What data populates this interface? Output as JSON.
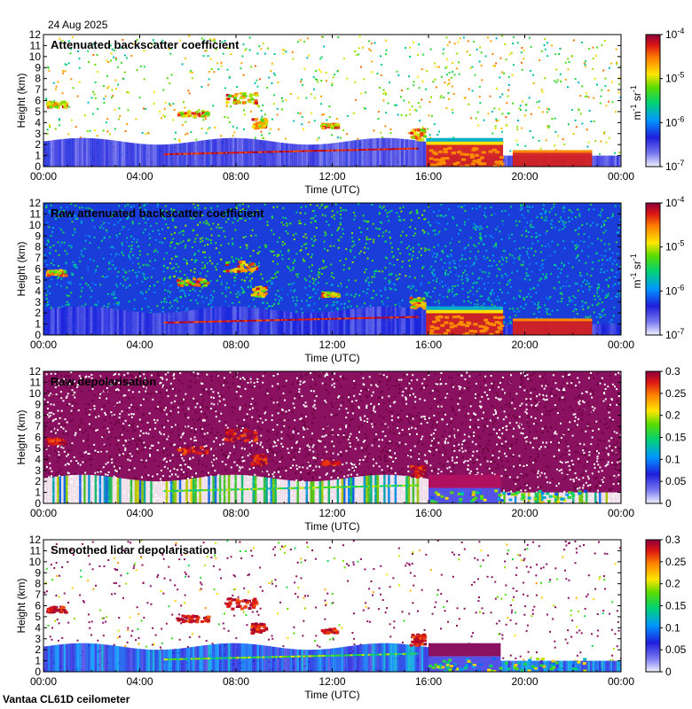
{
  "date_label": "24 Aug 2025",
  "footer_label": "Vantaa CL61D ceilometer",
  "colors": {
    "cloud_red": "#d42020",
    "cloud_orange": "#ff8c00",
    "cloud_yellow": "#ffe000",
    "ground_blue": "#7a86f0",
    "plot_bg_raw": "#1a3cd8",
    "raw_depol_bg": "#8a1060",
    "no_data": "#dddddd"
  },
  "chart_data": [
    {
      "type": "heatmap",
      "title": "Attenuated backscatter coefficient",
      "xlabel": "Time (UTC)",
      "ylabel": "Height (km)",
      "xticks": [
        "00:00",
        "04:00",
        "08:00",
        "12:00",
        "16:00",
        "20:00",
        "00:00"
      ],
      "yticks": [
        "0",
        "1",
        "2",
        "3",
        "4",
        "5",
        "6",
        "7",
        "8",
        "9",
        "10",
        "11",
        "12"
      ],
      "xlim_hours": [
        0,
        24
      ],
      "ylim_km": [
        0,
        12
      ],
      "colorbar": {
        "scale": "log",
        "ticks": [
          "10",
          "10",
          "10",
          "10"
        ],
        "exponents": [
          "-4",
          "-5",
          "-6",
          "-7"
        ],
        "unit_prefix": "m",
        "unit_middle": " sr",
        "unit_exp1": "-1",
        "unit_exp2": "-1"
      }
    },
    {
      "type": "heatmap",
      "title": "Raw attenuated backscatter coefficient",
      "xlabel": "Time (UTC)",
      "ylabel": "Height (km)",
      "xticks": [
        "00:00",
        "04:00",
        "08:00",
        "12:00",
        "16:00",
        "20:00",
        "00:00"
      ],
      "yticks": [
        "0",
        "1",
        "2",
        "3",
        "4",
        "5",
        "6",
        "7",
        "8",
        "9",
        "10",
        "11",
        "12"
      ],
      "xlim_hours": [
        0,
        24
      ],
      "ylim_km": [
        0,
        12
      ],
      "colorbar": {
        "scale": "log",
        "ticks": [
          "10",
          "10",
          "10",
          "10"
        ],
        "exponents": [
          "-4",
          "-5",
          "-6",
          "-7"
        ],
        "unit_prefix": "m",
        "unit_middle": " sr",
        "unit_exp1": "-1",
        "unit_exp2": "-1"
      }
    },
    {
      "type": "heatmap",
      "title": "Raw depolarisation",
      "xlabel": "Time (UTC)",
      "ylabel": "Height (km)",
      "xticks": [
        "00:00",
        "04:00",
        "08:00",
        "12:00",
        "16:00",
        "20:00",
        "00:00"
      ],
      "yticks": [
        "0",
        "1",
        "2",
        "3",
        "4",
        "5",
        "6",
        "7",
        "8",
        "9",
        "10",
        "11",
        "12"
      ],
      "xlim_hours": [
        0,
        24
      ],
      "ylim_km": [
        0,
        12
      ],
      "colorbar": {
        "scale": "linear",
        "ticks": [
          "0.3",
          "0.25",
          "0.2",
          "0.15",
          "0.1",
          "0.05",
          "0"
        ]
      }
    },
    {
      "type": "heatmap",
      "title": "Smoothed lidar depolarisation",
      "xlabel": "Time (UTC)",
      "ylabel": "Height (km)",
      "xticks": [
        "00:00",
        "04:00",
        "08:00",
        "12:00",
        "16:00",
        "20:00",
        "00:00"
      ],
      "yticks": [
        "0",
        "1",
        "2",
        "3",
        "4",
        "5",
        "6",
        "7",
        "8",
        "9",
        "10",
        "11",
        "12"
      ],
      "xlim_hours": [
        0,
        24
      ],
      "ylim_km": [
        0,
        12
      ],
      "colorbar": {
        "scale": "linear",
        "ticks": [
          "0.3",
          "0.25",
          "0.2",
          "0.15",
          "0.1",
          "0.05",
          "0"
        ]
      }
    }
  ]
}
